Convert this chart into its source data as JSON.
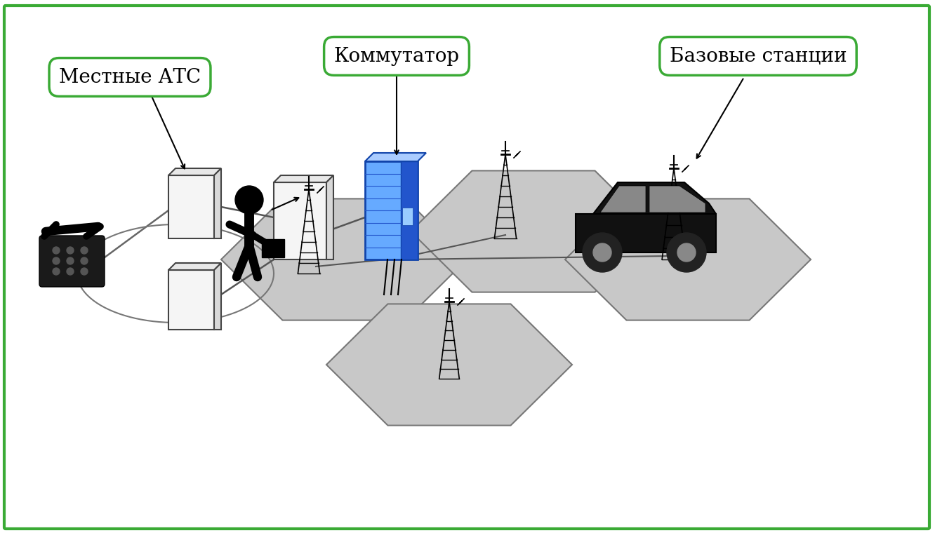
{
  "bg_color": "#ffffff",
  "border_color": "#3aaa35",
  "border_width": 3,
  "label_mestnie": "Местные АТС",
  "label_kommutator": "Коммутатор",
  "label_bazovye": "Базовые станции",
  "label_fontsize": 20,
  "hex_color": "#c8c8c8",
  "hex_edge_color": "#888888",
  "box_color": "#f0f0f0",
  "box_edge": "#555555",
  "kommutator_color": "#55aaff",
  "kommutator_dark": "#2266cc"
}
